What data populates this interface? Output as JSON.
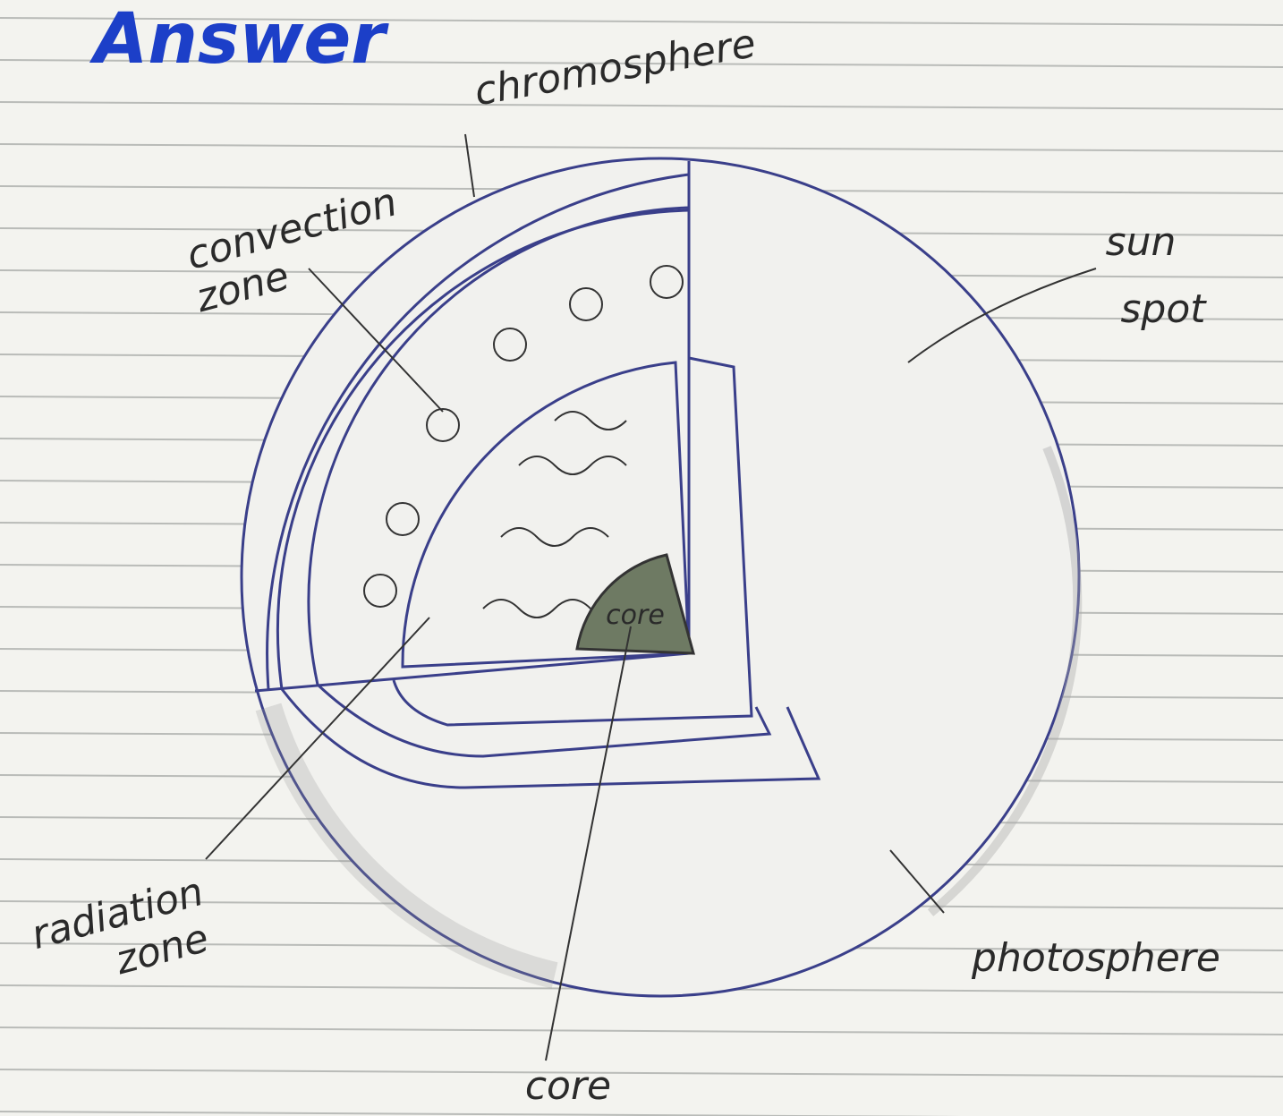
{
  "title": "Answer",
  "labels": {
    "chromosphere": "chromosphere",
    "convection_zone": [
      "convection",
      "zone"
    ],
    "sun_spot": [
      "sun",
      "spot"
    ],
    "radiation_zone": [
      "radiation",
      "zone"
    ],
    "photosphere": "photosphere",
    "core": "core"
  },
  "core_inner": "core"
}
